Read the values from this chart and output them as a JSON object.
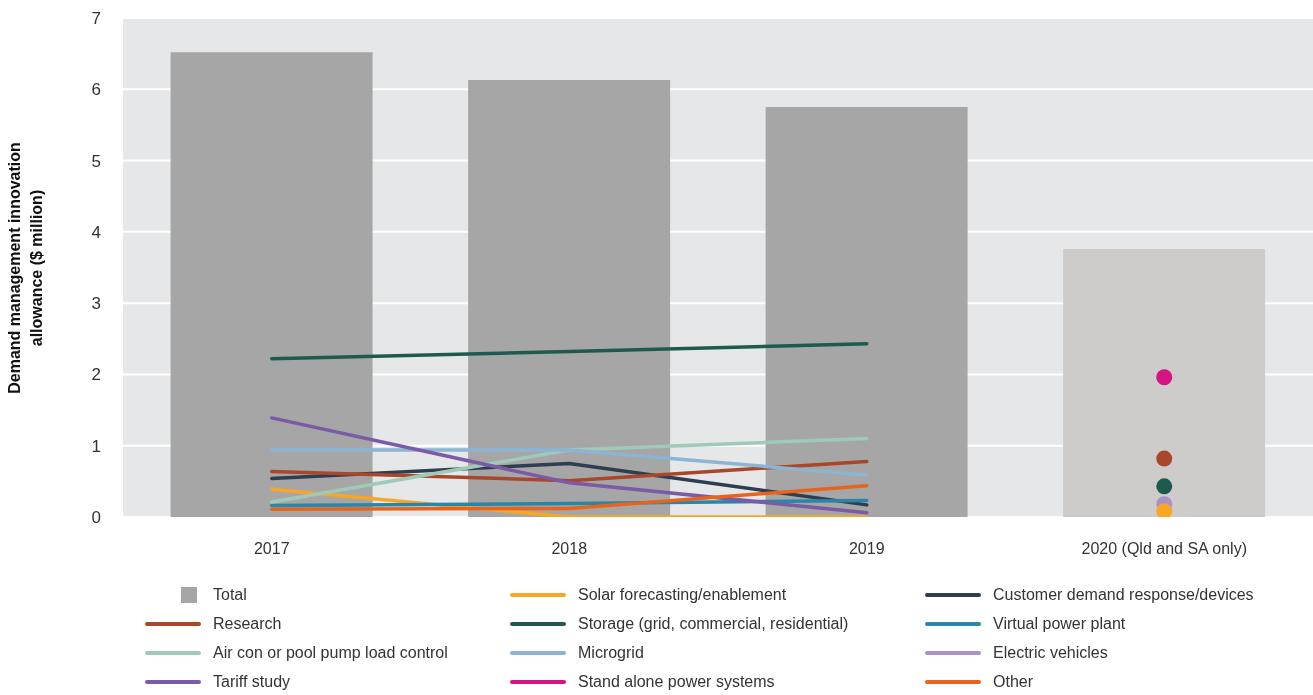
{
  "chart_data": {
    "type": "bar",
    "ylabel": "Demand management innovation allowance ($ million)",
    "categories": [
      "2017",
      "2018",
      "2019",
      "2020 (Qld and SA only)"
    ],
    "ylim": [
      0,
      7
    ],
    "yticks": [
      0,
      1,
      2,
      3,
      4,
      5,
      6,
      7
    ],
    "grid": "y",
    "legend": "bottom",
    "marker": "none",
    "series": [
      {
        "name": "Total",
        "colors": [
          "#a6a6a6",
          "#a6a6a6",
          "#a6a6a6",
          "#cdcccb"
        ],
        "values": [
          6.52,
          6.13,
          5.75,
          3.76
        ]
      },
      {
        "name": "Solar forecasting/enablement",
        "type": "line",
        "color": "#f7a626",
        "values": [
          0.39,
          0,
          0,
          null
        ]
      },
      {
        "name": "Customer demand response/devices",
        "type": "line",
        "color": "#2e3d4f",
        "values": [
          0.54,
          0.75,
          0.17,
          null
        ]
      },
      {
        "name": "Research",
        "type": "line",
        "color": "#a9472a",
        "values": [
          0.64,
          0.51,
          0.78,
          null
        ]
      },
      {
        "name": "Storage (grid, commercial, residential)",
        "type": "line",
        "color": "#1f5a4e",
        "values": [
          2.22,
          2.32,
          2.43,
          null
        ]
      },
      {
        "name": "Virtual power plant",
        "type": "line",
        "color": "#2a86a8",
        "values": [
          0.16,
          0.19,
          0.23,
          null
        ]
      },
      {
        "name": "Air con or pool pump load control",
        "type": "line",
        "color": "#9fc9b9",
        "values": [
          0.21,
          0.94,
          1.1,
          null
        ]
      },
      {
        "name": "Microgrid",
        "type": "line",
        "color": "#8db4d3",
        "values": [
          0.94,
          0.94,
          0.59,
          null
        ]
      },
      {
        "name": "Electric vehicles",
        "type": "scatter",
        "marker": "circle",
        "color": "#a893c4",
        "values": [
          null,
          null,
          null,
          0.18
        ]
      },
      {
        "name": "Tariff study",
        "type": "line",
        "color": "#7b5aa6",
        "values": [
          1.39,
          0.48,
          0.06,
          null
        ]
      },
      {
        "name": "Stand alone power systems",
        "type": "scatter",
        "marker": "circle",
        "color": "#d4147f",
        "values": [
          null,
          null,
          null,
          1.96
        ]
      },
      {
        "name": "Other",
        "type": "line",
        "color": "#e8641c",
        "values": [
          0.11,
          0.12,
          0.44,
          null
        ]
      },
      {
        "type": "scatter",
        "marker": "circle",
        "color": "#f7a626",
        "values": [
          null,
          null,
          null,
          0.08
        ]
      },
      {
        "type": "scatter",
        "marker": "circle",
        "color": "#a9472a",
        "values": [
          null,
          null,
          null,
          0.82
        ]
      },
      {
        "type": "scatter",
        "marker": "circle",
        "color": "#1f5a4e",
        "values": [
          null,
          null,
          null,
          0.43
        ]
      }
    ]
  }
}
